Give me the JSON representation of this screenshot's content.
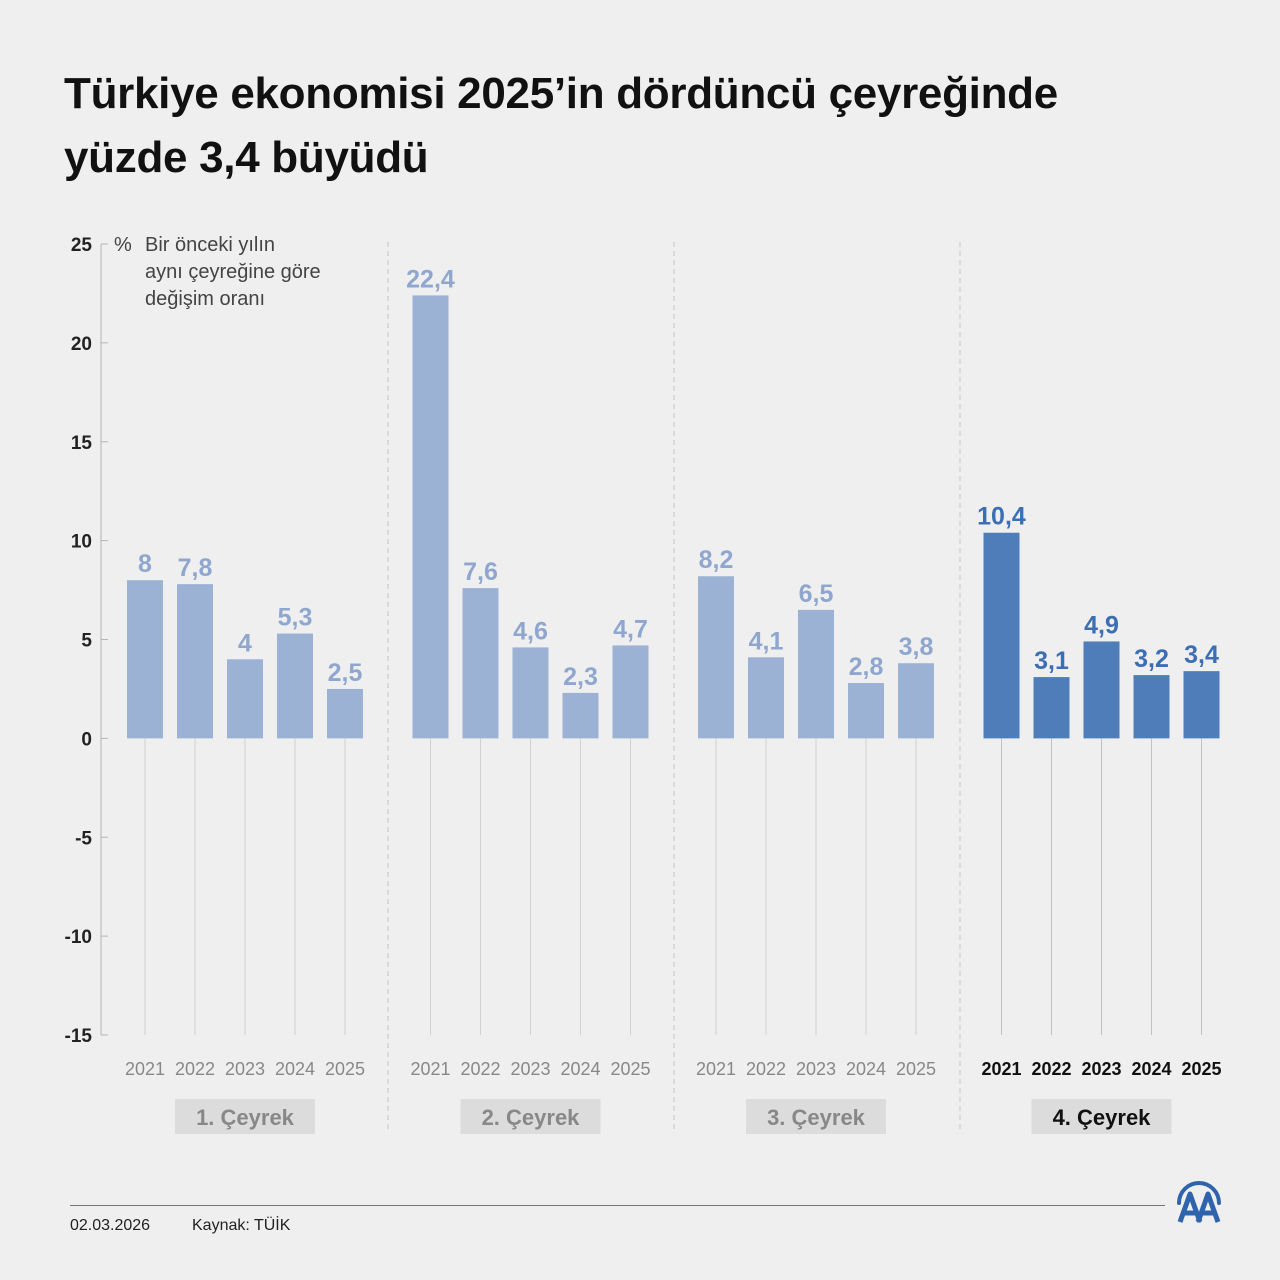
{
  "title": {
    "line1": "Türkiye ekonomisi 2025’in dördüncü çeyreğinde",
    "line2": "yüzde 3,4 büyüdü"
  },
  "footer": {
    "date": "02.03.2026",
    "source": "Kaynak: TÜİK",
    "logo_text": "AA"
  },
  "colors": {
    "background": "#efefef",
    "bar_faded": "#9cb2d4",
    "bar_highlight": "#4f7dba",
    "label_faded": "#8fa7cf",
    "label_highlight": "#3c6eb4",
    "quarter_box": "#dcdcdc"
  },
  "chart_data": {
    "type": "bar",
    "unit": "%",
    "ylabel": "Bir önceki yılın aynı çeyreğine göre değişim oranı",
    "ylabel_lines": [
      "Bir önceki yılın",
      "aynı çeyreğine göre",
      "değişim oranı"
    ],
    "ylim": [
      -15,
      25
    ],
    "yticks": [
      "25",
      "20",
      "15",
      "10",
      "5",
      "0",
      "-5",
      "-10",
      "-15"
    ],
    "ytick_values": [
      25,
      20,
      15,
      10,
      5,
      0,
      -5,
      -10,
      -15
    ],
    "categories": [
      "2021",
      "2022",
      "2023",
      "2024",
      "2025"
    ],
    "groups": [
      {
        "name": "1. Çeyrek",
        "values": [
          8,
          7.8,
          4,
          5.3,
          2.5
        ],
        "labels": [
          "8",
          "7,8",
          "4",
          "5,3",
          "2,5"
        ],
        "highlight": false
      },
      {
        "name": "2. Çeyrek",
        "values": [
          22.4,
          7.6,
          4.6,
          2.3,
          4.7
        ],
        "labels": [
          "22,4",
          "7,6",
          "4,6",
          "2,3",
          "4,7"
        ],
        "highlight": false
      },
      {
        "name": "3. Çeyrek",
        "values": [
          8.2,
          4.1,
          6.5,
          2.8,
          3.8
        ],
        "labels": [
          "8,2",
          "4,1",
          "6,5",
          "2,8",
          "3,8"
        ],
        "highlight": false
      },
      {
        "name": "4. Çeyrek",
        "values": [
          10.4,
          3.1,
          4.9,
          3.2,
          3.4
        ],
        "labels": [
          "10,4",
          "3,1",
          "4,9",
          "3,2",
          "3,4"
        ],
        "highlight": true
      }
    ]
  }
}
